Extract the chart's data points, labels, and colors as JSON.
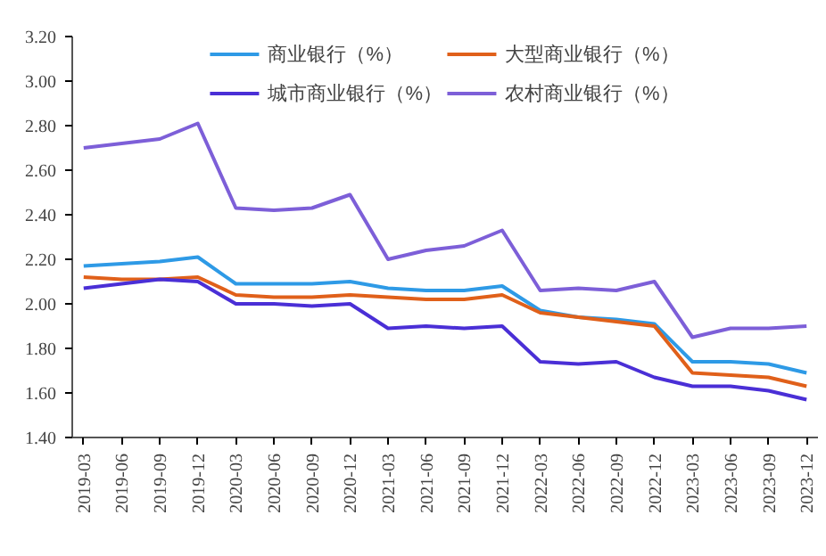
{
  "chart_data": {
    "type": "line",
    "categories": [
      "2019-03",
      "2019-06",
      "2019-09",
      "2019-12",
      "2020-03",
      "2020-06",
      "2020-09",
      "2020-12",
      "2021-03",
      "2021-06",
      "2021-09",
      "2021-12",
      "2022-03",
      "2022-06",
      "2022-09",
      "2022-12",
      "2023-03",
      "2023-06",
      "2023-09",
      "2023-12"
    ],
    "series": [
      {
        "name": "商业银行（%）",
        "color": "#2e9ae6",
        "values": [
          2.17,
          2.18,
          2.19,
          2.21,
          2.09,
          2.09,
          2.09,
          2.1,
          2.07,
          2.06,
          2.06,
          2.08,
          1.97,
          1.94,
          1.93,
          1.91,
          1.74,
          1.74,
          1.73,
          1.69
        ]
      },
      {
        "name": "大型商业银行（%）",
        "color": "#e0601a",
        "values": [
          2.12,
          2.11,
          2.11,
          2.12,
          2.04,
          2.03,
          2.03,
          2.04,
          2.03,
          2.02,
          2.02,
          2.04,
          1.96,
          1.94,
          1.92,
          1.9,
          1.69,
          1.68,
          1.67,
          1.63
        ]
      },
      {
        "name": "城市商业银行（%）",
        "color": "#4a2fd6",
        "values": [
          2.07,
          2.09,
          2.11,
          2.1,
          2.0,
          2.0,
          1.99,
          2.0,
          1.89,
          1.9,
          1.89,
          1.9,
          1.74,
          1.73,
          1.74,
          1.67,
          1.63,
          1.63,
          1.61,
          1.57
        ]
      },
      {
        "name": "农村商业银行（%）",
        "color": "#7d5fd8",
        "values": [
          2.7,
          2.72,
          2.74,
          2.81,
          2.43,
          2.42,
          2.43,
          2.49,
          2.2,
          2.24,
          2.26,
          2.33,
          2.06,
          2.07,
          2.06,
          2.1,
          1.85,
          1.89,
          1.89,
          1.9
        ]
      }
    ],
    "ylim": [
      1.4,
      3.2
    ],
    "yticks": [
      {
        "value": 1.4,
        "label": "1.40"
      },
      {
        "value": 1.6,
        "label": "1.60"
      },
      {
        "value": 1.8,
        "label": "1.80"
      },
      {
        "value": 2.0,
        "label": "2.00"
      },
      {
        "value": 2.2,
        "label": "2.20"
      },
      {
        "value": 2.4,
        "label": "2.40"
      },
      {
        "value": 2.6,
        "label": "2.60"
      },
      {
        "value": 2.8,
        "label": "2.80"
      },
      {
        "value": 3.0,
        "label": "3.00"
      },
      {
        "value": 3.2,
        "label": "3.20"
      }
    ],
    "legend": "top",
    "grid": false,
    "marker": "none",
    "line_style": "solid"
  }
}
